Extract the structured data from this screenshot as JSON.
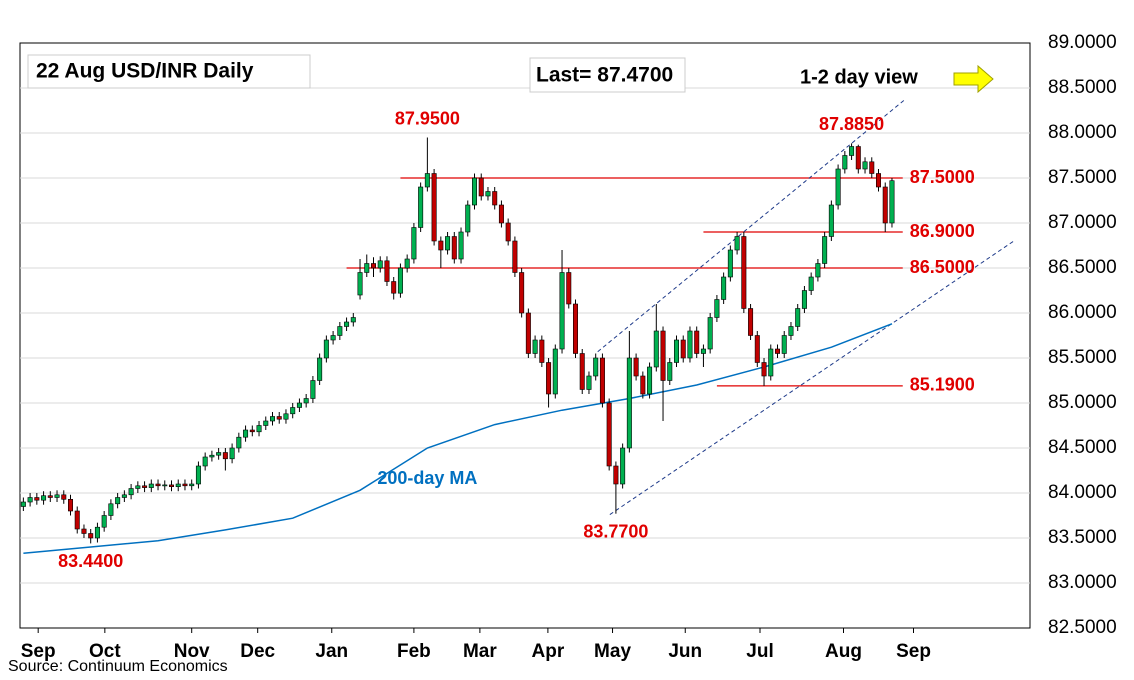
{
  "chart_data": {
    "type": "candlestick",
    "title": "22 Aug  USD/INR  Daily",
    "last_label": "Last= 87.4700",
    "view_label": "1-2 day view",
    "source": "Source: Continuum Economics",
    "up_color": "#00b050",
    "down_color": "#c00000",
    "ylim": [
      82.5,
      89
    ],
    "yticks": [
      {
        "value": 82.5,
        "label": "82.5000"
      },
      {
        "value": 83,
        "label": "83.0000"
      },
      {
        "value": 83.5,
        "label": "83.5000"
      },
      {
        "value": 84,
        "label": "84.0000"
      },
      {
        "value": 84.5,
        "label": "84.5000"
      },
      {
        "value": 85,
        "label": "85.0000"
      },
      {
        "value": 85.5,
        "label": "85.5000"
      },
      {
        "value": 86,
        "label": "86.0000"
      },
      {
        "value": 86.5,
        "label": "86.5000"
      },
      {
        "value": 87,
        "label": "87.0000"
      },
      {
        "value": 87.5,
        "label": "87.5000"
      },
      {
        "value": 88,
        "label": "88.0000"
      },
      {
        "value": 88.5,
        "label": "88.5000"
      },
      {
        "value": 89,
        "label": "89.0000"
      }
    ],
    "xlim": [
      -0.5,
      149.5
    ],
    "xticks": [
      {
        "value": 2.2,
        "label": "Sep"
      },
      {
        "value": 12.1,
        "label": "Oct"
      },
      {
        "value": 25,
        "label": "Nov"
      },
      {
        "value": 34.8,
        "label": "Dec"
      },
      {
        "value": 45.8,
        "label": "Jan"
      },
      {
        "value": 58,
        "label": "Feb"
      },
      {
        "value": 67.8,
        "label": "Mar"
      },
      {
        "value": 77.9,
        "label": "Apr"
      },
      {
        "value": 87.5,
        "label": "May"
      },
      {
        "value": 98.3,
        "label": "Jun"
      },
      {
        "value": 109.4,
        "label": "Jul"
      },
      {
        "value": 121.8,
        "label": "Aug"
      },
      {
        "value": 132.2,
        "label": "Sep"
      }
    ],
    "grid": true,
    "ohlc": [
      [
        83.85,
        83.95,
        83.8,
        83.9
      ],
      [
        83.9,
        84.0,
        83.85,
        83.95
      ],
      [
        83.95,
        84.0,
        83.87,
        83.92
      ],
      [
        83.92,
        84.02,
        83.87,
        83.97
      ],
      [
        83.97,
        84.02,
        83.9,
        83.95
      ],
      [
        83.95,
        84.03,
        83.9,
        83.98
      ],
      [
        83.98,
        84.03,
        83.88,
        83.93
      ],
      [
        83.93,
        83.98,
        83.75,
        83.8
      ],
      [
        83.8,
        83.85,
        83.55,
        83.6
      ],
      [
        83.6,
        83.65,
        83.5,
        83.55
      ],
      [
        83.55,
        83.6,
        83.44,
        83.5
      ],
      [
        83.5,
        83.67,
        83.45,
        83.62
      ],
      [
        83.62,
        83.8,
        83.57,
        83.75
      ],
      [
        83.75,
        83.93,
        83.7,
        83.88
      ],
      [
        83.88,
        84.0,
        83.83,
        83.95
      ],
      [
        83.95,
        84.03,
        83.9,
        83.98
      ],
      [
        83.98,
        84.1,
        83.93,
        84.05
      ],
      [
        84.05,
        84.13,
        84.0,
        84.08
      ],
      [
        84.08,
        84.13,
        84.01,
        84.06
      ],
      [
        84.06,
        84.15,
        84.01,
        84.1
      ],
      [
        84.1,
        84.15,
        84.03,
        84.08
      ],
      [
        84.08,
        84.14,
        84.03,
        84.09
      ],
      [
        84.09,
        84.14,
        84.02,
        84.07
      ],
      [
        84.07,
        84.15,
        84.02,
        84.1
      ],
      [
        84.1,
        84.15,
        84.03,
        84.08
      ],
      [
        84.08,
        84.15,
        84.03,
        84.1
      ],
      [
        84.1,
        84.35,
        84.05,
        84.3
      ],
      [
        84.3,
        84.45,
        84.25,
        84.4
      ],
      [
        84.4,
        84.47,
        84.35,
        84.42
      ],
      [
        84.42,
        84.5,
        84.37,
        84.45
      ],
      [
        84.45,
        84.5,
        84.25,
        84.38
      ],
      [
        84.38,
        84.55,
        84.33,
        84.5
      ],
      [
        84.5,
        84.67,
        84.45,
        84.62
      ],
      [
        84.62,
        84.75,
        84.57,
        84.7
      ],
      [
        84.7,
        84.75,
        84.63,
        84.68
      ],
      [
        84.68,
        84.8,
        84.63,
        84.75
      ],
      [
        84.75,
        84.85,
        84.7,
        84.8
      ],
      [
        84.8,
        84.9,
        84.75,
        84.85
      ],
      [
        84.85,
        84.9,
        84.77,
        84.82
      ],
      [
        84.82,
        84.93,
        84.77,
        84.88
      ],
      [
        84.88,
        85.0,
        84.83,
        84.95
      ],
      [
        84.95,
        85.05,
        84.9,
        85.0
      ],
      [
        85.0,
        85.1,
        84.95,
        85.05
      ],
      [
        85.05,
        85.3,
        85.0,
        85.25
      ],
      [
        85.25,
        85.55,
        85.2,
        85.5
      ],
      [
        85.5,
        85.75,
        85.45,
        85.7
      ],
      [
        85.7,
        85.8,
        85.65,
        85.75
      ],
      [
        85.75,
        85.9,
        85.7,
        85.85
      ],
      [
        85.85,
        85.95,
        85.8,
        85.9
      ],
      [
        85.9,
        86.0,
        85.85,
        85.95
      ],
      [
        86.2,
        86.6,
        86.15,
        86.45
      ],
      [
        86.45,
        86.65,
        86.4,
        86.55
      ],
      [
        86.55,
        86.62,
        86.4,
        86.5
      ],
      [
        86.5,
        86.63,
        86.45,
        86.58
      ],
      [
        86.58,
        86.63,
        86.3,
        86.35
      ],
      [
        86.35,
        86.4,
        86.15,
        86.22
      ],
      [
        86.22,
        86.55,
        86.17,
        86.5
      ],
      [
        86.5,
        86.65,
        86.45,
        86.6
      ],
      [
        86.6,
        87.0,
        86.55,
        86.95
      ],
      [
        86.95,
        87.45,
        86.9,
        87.4
      ],
      [
        87.4,
        87.95,
        87.35,
        87.55
      ],
      [
        87.55,
        87.6,
        86.75,
        86.8
      ],
      [
        86.8,
        86.85,
        86.5,
        86.7
      ],
      [
        86.7,
        86.9,
        86.65,
        86.85
      ],
      [
        86.85,
        86.9,
        86.55,
        86.6
      ],
      [
        86.6,
        86.95,
        86.55,
        86.9
      ],
      [
        86.9,
        87.25,
        86.85,
        87.2
      ],
      [
        87.2,
        87.55,
        87.15,
        87.5
      ],
      [
        87.5,
        87.55,
        87.25,
        87.3
      ],
      [
        87.3,
        87.4,
        87.25,
        87.35
      ],
      [
        87.35,
        87.4,
        87.15,
        87.2
      ],
      [
        87.2,
        87.25,
        86.95,
        87.0
      ],
      [
        87.0,
        87.05,
        86.75,
        86.8
      ],
      [
        86.8,
        86.85,
        86.4,
        86.45
      ],
      [
        86.45,
        86.5,
        85.95,
        86.0
      ],
      [
        86.0,
        86.05,
        85.5,
        85.55
      ],
      [
        85.55,
        85.75,
        85.5,
        85.7
      ],
      [
        85.7,
        85.75,
        85.4,
        85.45
      ],
      [
        85.45,
        85.5,
        84.95,
        85.1
      ],
      [
        85.1,
        85.65,
        85.05,
        85.6
      ],
      [
        85.6,
        86.7,
        85.55,
        86.45
      ],
      [
        86.45,
        86.5,
        86.05,
        86.1
      ],
      [
        86.1,
        86.15,
        85.5,
        85.55
      ],
      [
        85.55,
        85.6,
        85.1,
        85.15
      ],
      [
        85.15,
        85.35,
        85.1,
        85.3
      ],
      [
        85.3,
        85.55,
        85.25,
        85.5
      ],
      [
        85.5,
        85.55,
        84.95,
        85.0
      ],
      [
        85.0,
        85.05,
        84.25,
        84.3
      ],
      [
        84.3,
        84.35,
        83.77,
        84.1
      ],
      [
        84.1,
        84.55,
        84.05,
        84.5
      ],
      [
        84.5,
        85.8,
        84.45,
        85.5
      ],
      [
        85.5,
        85.55,
        85.25,
        85.3
      ],
      [
        85.3,
        85.35,
        85.05,
        85.1
      ],
      [
        85.1,
        85.45,
        85.05,
        85.4
      ],
      [
        85.4,
        86.1,
        85.35,
        85.8
      ],
      [
        85.8,
        85.85,
        84.8,
        85.25
      ],
      [
        85.25,
        85.5,
        85.2,
        85.45
      ],
      [
        85.45,
        85.75,
        85.4,
        85.7
      ],
      [
        85.7,
        85.75,
        85.45,
        85.5
      ],
      [
        85.5,
        85.85,
        85.45,
        85.8
      ],
      [
        85.8,
        85.85,
        85.5,
        85.55
      ],
      [
        85.55,
        85.65,
        85.4,
        85.6
      ],
      [
        85.6,
        86.0,
        85.55,
        85.95
      ],
      [
        85.95,
        86.2,
        85.9,
        86.15
      ],
      [
        86.15,
        86.45,
        86.1,
        86.4
      ],
      [
        86.4,
        86.75,
        86.35,
        86.7
      ],
      [
        86.7,
        86.9,
        86.65,
        86.85
      ],
      [
        86.85,
        86.9,
        86.0,
        86.05
      ],
      [
        86.05,
        86.1,
        85.7,
        85.75
      ],
      [
        85.75,
        85.8,
        85.4,
        85.45
      ],
      [
        85.45,
        85.5,
        85.19,
        85.3
      ],
      [
        85.3,
        85.65,
        85.25,
        85.6
      ],
      [
        85.6,
        85.65,
        85.5,
        85.55
      ],
      [
        85.55,
        85.8,
        85.5,
        85.75
      ],
      [
        85.75,
        85.9,
        85.7,
        85.85
      ],
      [
        85.85,
        86.1,
        85.8,
        86.05
      ],
      [
        86.05,
        86.3,
        86.0,
        86.25
      ],
      [
        86.25,
        86.45,
        86.2,
        86.4
      ],
      [
        86.4,
        86.6,
        86.35,
        86.55
      ],
      [
        86.55,
        86.9,
        86.5,
        86.85
      ],
      [
        86.85,
        87.25,
        86.8,
        87.2
      ],
      [
        87.2,
        87.65,
        87.15,
        87.6
      ],
      [
        87.6,
        87.8,
        87.55,
        87.75
      ],
      [
        87.75,
        87.885,
        87.7,
        87.85
      ],
      [
        87.85,
        87.87,
        87.55,
        87.6
      ],
      [
        87.6,
        87.73,
        87.55,
        87.68
      ],
      [
        87.68,
        87.73,
        87.5,
        87.55
      ],
      [
        87.55,
        87.6,
        87.35,
        87.4
      ],
      [
        87.4,
        87.45,
        86.9,
        87.0
      ],
      [
        87.0,
        87.5,
        86.95,
        87.47
      ]
    ],
    "ma": {
      "name": "200-day MA",
      "color": "#0070c0",
      "x": [
        0,
        10,
        20,
        30,
        40,
        50,
        60,
        70,
        80,
        90,
        100,
        110,
        120,
        129
      ],
      "values": [
        83.33,
        83.4,
        83.47,
        83.59,
        83.72,
        84.03,
        84.5,
        84.76,
        84.92,
        85.05,
        85.2,
        85.4,
        85.62,
        85.88
      ]
    },
    "levels": [
      {
        "value": 87.5,
        "label": "87.5000",
        "from": 56
      },
      {
        "value": 86.9,
        "label": "86.9000",
        "from": 101
      },
      {
        "value": 86.5,
        "label": "86.5000",
        "from": 48
      },
      {
        "value": 85.19,
        "label": "85.1900",
        "from": 103
      }
    ],
    "level_color": "#e00000",
    "channel": [
      {
        "x": [
          87.1,
          147.3
        ],
        "values": [
          83.76,
          86.81
        ]
      },
      {
        "x": [
          85.3,
          130.9
        ],
        "values": [
          85.57,
          88.37
        ]
      }
    ],
    "annotations": [
      {
        "label": "87.9500",
        "value": 87.95,
        "x": 60
      },
      {
        "label": "83.7700",
        "value": 83.77,
        "x": 88
      },
      {
        "label": "83.4400",
        "value": 83.44,
        "x": 10
      },
      {
        "label": "87.8850",
        "value": 87.885,
        "x": 123
      }
    ]
  }
}
